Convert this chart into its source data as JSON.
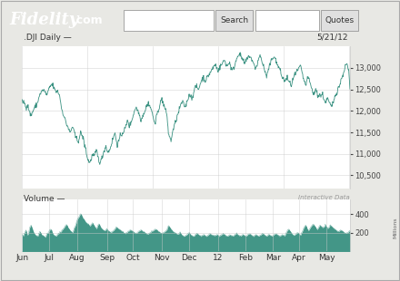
{
  "date_label": "5/21/12",
  "price_label": ".DJI Daily —",
  "volume_label": "Volume —",
  "interactive_label": "Interactive Data",
  "millions_label": "Millions",
  "header_bg": "#4aaa38",
  "chart_bg": "#e8e8e4",
  "plot_bg": "#ffffff",
  "grid_color": "#cccccc",
  "line_color": "#2e8b7a",
  "fill_color": "#2e8b7a",
  "text_color": "#333333",
  "x_labels": [
    "Jun",
    "Jul",
    "Aug",
    "Sep",
    "Oct",
    "Nov",
    "Dec",
    "12",
    "Feb",
    "Mar",
    "Apr",
    "May"
  ],
  "x_positions": [
    0,
    21,
    42,
    65,
    85,
    107,
    128,
    150,
    171,
    192,
    212,
    233
  ],
  "price_yticks": [
    10500,
    11000,
    11500,
    12000,
    12500,
    13000
  ],
  "price_ylim": [
    10200,
    13500
  ],
  "volume_yticks": [
    200,
    400
  ],
  "volume_ylim": [
    0,
    560
  ],
  "n_points": 252,
  "price_data": [
    12200,
    12230,
    12170,
    12090,
    12140,
    12070,
    11940,
    11890,
    11970,
    12040,
    12090,
    12140,
    12190,
    12340,
    12390,
    12440,
    12490,
    12470,
    12410,
    12370,
    12440,
    12540,
    12590,
    12610,
    12570,
    12490,
    12440,
    12470,
    12410,
    12340,
    12090,
    11990,
    11890,
    11790,
    11690,
    11640,
    11540,
    11490,
    11590,
    11640,
    11490,
    11390,
    11340,
    11290,
    11390,
    11490,
    11440,
    11340,
    11190,
    11090,
    10890,
    10840,
    10790,
    10890,
    10990,
    10940,
    10990,
    11090,
    10940,
    10840,
    10790,
    10890,
    10990,
    11090,
    11190,
    11090,
    11040,
    11090,
    11190,
    11290,
    11390,
    11490,
    11340,
    11190,
    11290,
    11390,
    11440,
    11490,
    11540,
    11590,
    11690,
    11790,
    11640,
    11690,
    11790,
    11890,
    11990,
    12090,
    12040,
    11990,
    11890,
    11790,
    11840,
    11940,
    11990,
    12090,
    12140,
    12190,
    12090,
    12040,
    11890,
    11790,
    11690,
    11890,
    11990,
    12090,
    12190,
    12290,
    12190,
    12090,
    11990,
    11890,
    11490,
    11390,
    11290,
    11490,
    11590,
    11690,
    11790,
    11890,
    11990,
    12090,
    12190,
    12190,
    12140,
    12090,
    12190,
    12290,
    12390,
    12340,
    12290,
    12390,
    12490,
    12590,
    12540,
    12490,
    12590,
    12690,
    12740,
    12790,
    12690,
    12740,
    12790,
    12840,
    12890,
    12940,
    12990,
    13040,
    13090,
    12990,
    12940,
    12990,
    13040,
    13090,
    13140,
    13190,
    13090,
    13040,
    13090,
    13140,
    12990,
    12940,
    12990,
    13090,
    13190,
    13290,
    13340,
    13290,
    13240,
    13190,
    13090,
    13140,
    13190,
    13240,
    13290,
    13240,
    13190,
    13090,
    13040,
    12990,
    13090,
    13190,
    13290,
    13240,
    13090,
    13040,
    12890,
    12790,
    12890,
    12990,
    13090,
    13190,
    13240,
    13290,
    13190,
    13090,
    13040,
    12990,
    12890,
    12790,
    12740,
    12690,
    12740,
    12790,
    12690,
    12640,
    12590,
    12690,
    12790,
    12840,
    12890,
    12940,
    12990,
    13040,
    12940,
    12790,
    12690,
    12590,
    12690,
    12790,
    12690,
    12590,
    12490,
    12390,
    12440,
    12490,
    12390,
    12340,
    12390,
    12340,
    12390,
    12290,
    12190,
    12240,
    12290,
    12190,
    12140,
    12090,
    12190,
    12290,
    12390,
    12440,
    12540,
    12590,
    12690,
    12790,
    12890,
    12990,
    13090,
    13040,
    12940,
    12490
  ],
  "volume_data": [
    180,
    160,
    200,
    230,
    170,
    190,
    260,
    280,
    240,
    200,
    180,
    170,
    160,
    190,
    210,
    180,
    170,
    160,
    150,
    190,
    200,
    220,
    240,
    210,
    180,
    170,
    160,
    180,
    190,
    200,
    210,
    230,
    250,
    270,
    290,
    260,
    240,
    220,
    210,
    200,
    250,
    280,
    330,
    360,
    380,
    410,
    370,
    350,
    330,
    310,
    300,
    290,
    270,
    290,
    310,
    280,
    260,
    240,
    280,
    300,
    260,
    240,
    230,
    220,
    230,
    240,
    220,
    210,
    200,
    210,
    220,
    240,
    260,
    250,
    240,
    230,
    220,
    210,
    200,
    190,
    200,
    210,
    220,
    230,
    220,
    210,
    200,
    190,
    200,
    210,
    220,
    230,
    220,
    210,
    200,
    190,
    180,
    190,
    200,
    210,
    220,
    230,
    240,
    230,
    220,
    210,
    200,
    190,
    200,
    210,
    220,
    230,
    280,
    260,
    240,
    220,
    210,
    200,
    190,
    180,
    190,
    200,
    180,
    170,
    160,
    170,
    180,
    190,
    200,
    180,
    170,
    160,
    170,
    180,
    190,
    180,
    170,
    160,
    170,
    180,
    170,
    160,
    170,
    180,
    190,
    180,
    170,
    160,
    170,
    180,
    170,
    160,
    170,
    180,
    190,
    180,
    170,
    160,
    170,
    180,
    170,
    160,
    170,
    180,
    190,
    180,
    170,
    160,
    170,
    180,
    170,
    160,
    170,
    180,
    190,
    180,
    170,
    160,
    170,
    180,
    170,
    160,
    170,
    180,
    190,
    180,
    170,
    160,
    170,
    180,
    170,
    160,
    170,
    180,
    190,
    180,
    170,
    160,
    170,
    180,
    170,
    160,
    200,
    220,
    240,
    220,
    200,
    180,
    170,
    180,
    190,
    200,
    180,
    170,
    200,
    230,
    260,
    280,
    250,
    220,
    240,
    260,
    280,
    290,
    270,
    250,
    230,
    260,
    280,
    270,
    250,
    260,
    280,
    260,
    240,
    260,
    280,
    270,
    250,
    240,
    230,
    220,
    210,
    220,
    230,
    220,
    210,
    200,
    190,
    200,
    210,
    220
  ]
}
